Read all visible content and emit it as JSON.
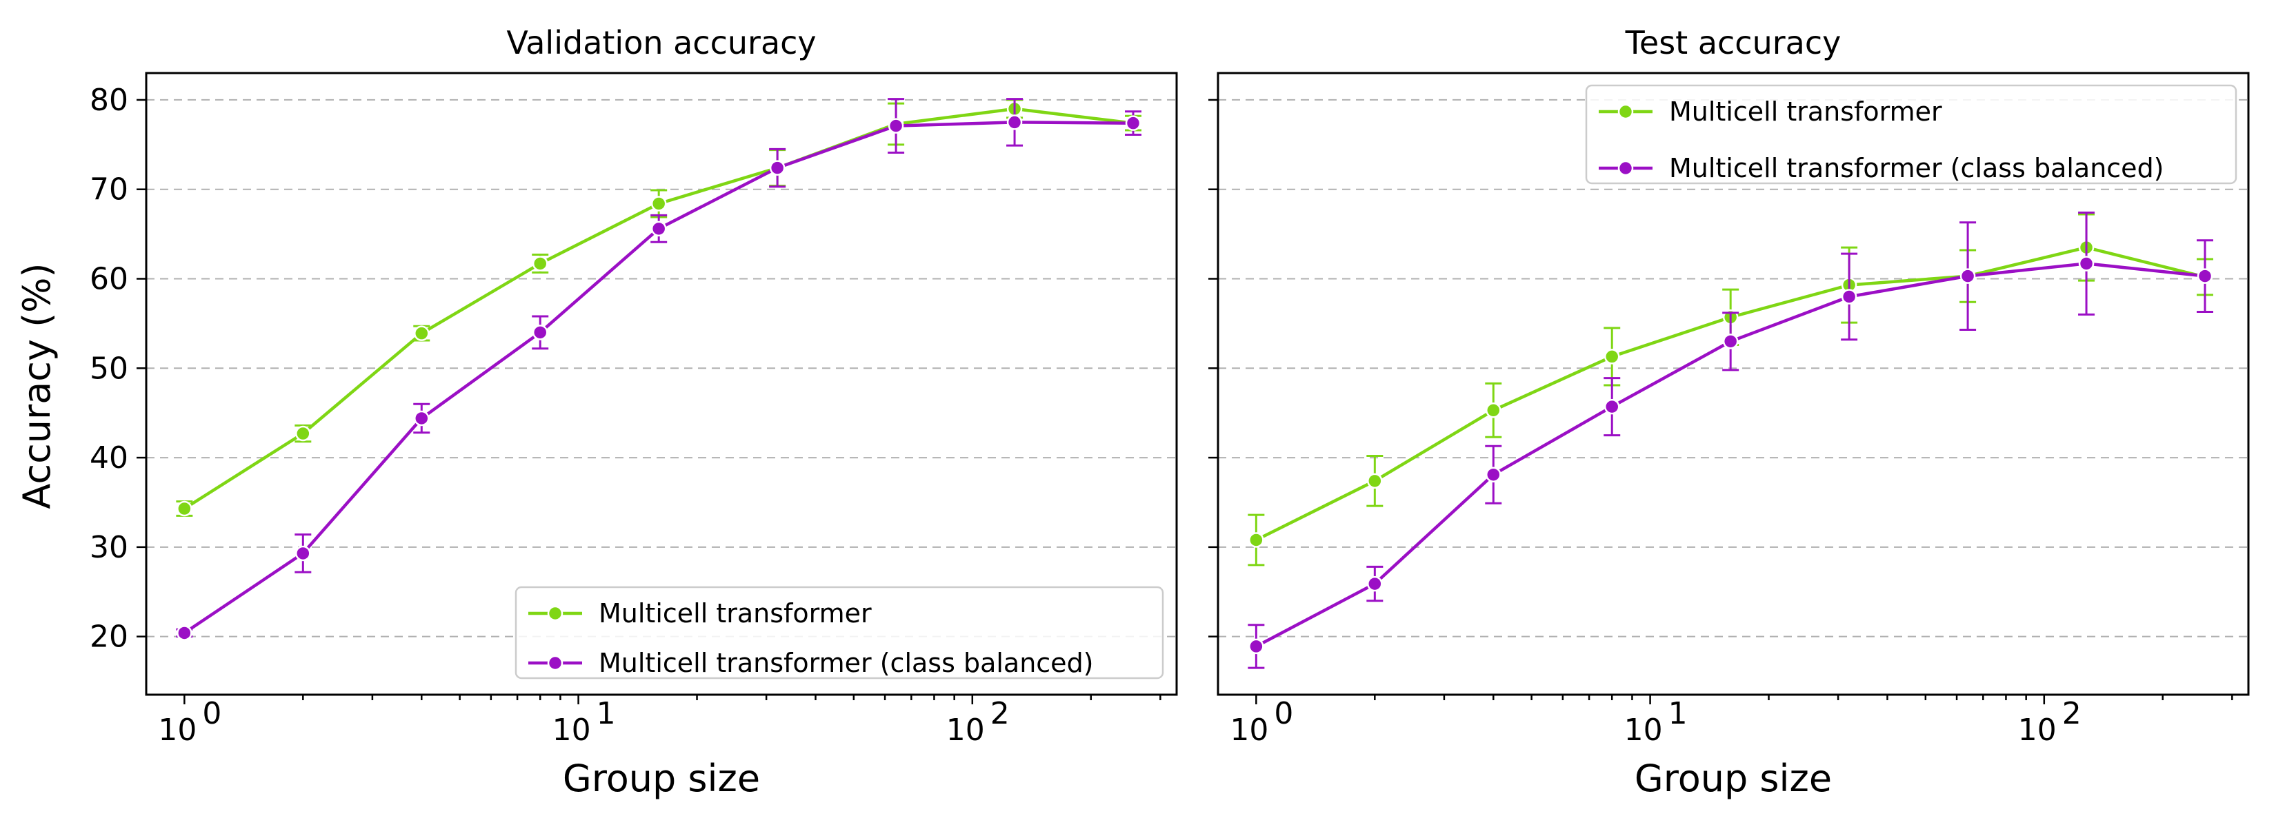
{
  "figure": {
    "ylabel": "Accuracy (%)"
  },
  "colors": {
    "series_0": "#7fd614",
    "series_1": "#9b0fc5"
  },
  "chart_data": [
    {
      "type": "line",
      "title": "Validation accuracy",
      "xlabel": "Group size",
      "ylabel": "Accuracy (%)",
      "xscale": "log",
      "xlim": [
        0.8,
        330
      ],
      "ylim": [
        13.5,
        83
      ],
      "x_ticks": [
        1,
        10,
        100
      ],
      "x_tick_labels": [
        "10",
        "10",
        "10"
      ],
      "x_tick_exponents": [
        "0",
        "1",
        "2"
      ],
      "y_ticks": [
        20,
        30,
        40,
        50,
        60,
        70,
        80
      ],
      "y_tick_labels": [
        "20",
        "30",
        "40",
        "50",
        "60",
        "70",
        "80"
      ],
      "grid": "y",
      "legend_position": "lower-right",
      "x": [
        1,
        2,
        4,
        8,
        16,
        32,
        64,
        128,
        256
      ],
      "series": [
        {
          "name": "Multicell transformer",
          "values": [
            34.3,
            42.7,
            53.9,
            61.7,
            68.4,
            72.4,
            77.3,
            79.0,
            77.4
          ],
          "errors": [
            0.8,
            0.9,
            0.8,
            1.0,
            1.5,
            2.0,
            2.3,
            1.0,
            0.8
          ]
        },
        {
          "name": "Multicell transformer (class balanced)",
          "values": [
            20.4,
            29.3,
            44.4,
            54.0,
            65.6,
            72.4,
            77.1,
            77.5,
            77.4
          ],
          "errors": [
            0.4,
            2.1,
            1.6,
            1.8,
            1.5,
            2.1,
            3.0,
            2.6,
            1.3
          ]
        }
      ]
    },
    {
      "type": "line",
      "title": "Test accuracy",
      "xlabel": "Group size",
      "ylabel": "",
      "xscale": "log",
      "xlim": [
        0.8,
        330
      ],
      "ylim": [
        13.5,
        83
      ],
      "x_ticks": [
        1,
        10,
        100
      ],
      "x_tick_labels": [
        "10",
        "10",
        "10"
      ],
      "x_tick_exponents": [
        "0",
        "1",
        "2"
      ],
      "y_ticks": [
        20,
        30,
        40,
        50,
        60,
        70,
        80
      ],
      "y_tick_labels": [],
      "grid": "y",
      "legend_position": "top-right",
      "x": [
        1,
        2,
        4,
        8,
        16,
        32,
        64,
        128,
        256
      ],
      "series": [
        {
          "name": "Multicell transformer",
          "values": [
            30.8,
            37.4,
            45.3,
            51.3,
            55.7,
            59.3,
            60.3,
            63.5,
            60.2
          ],
          "errors": [
            2.8,
            2.8,
            3.0,
            3.2,
            3.1,
            4.2,
            2.9,
            3.7,
            2.0
          ]
        },
        {
          "name": "Multicell transformer (class balanced)",
          "values": [
            18.9,
            25.9,
            38.1,
            45.7,
            53.0,
            58.0,
            60.3,
            61.7,
            60.3
          ],
          "errors": [
            2.4,
            1.9,
            3.2,
            3.2,
            3.2,
            4.8,
            6.0,
            5.7,
            4.0
          ]
        }
      ]
    }
  ]
}
